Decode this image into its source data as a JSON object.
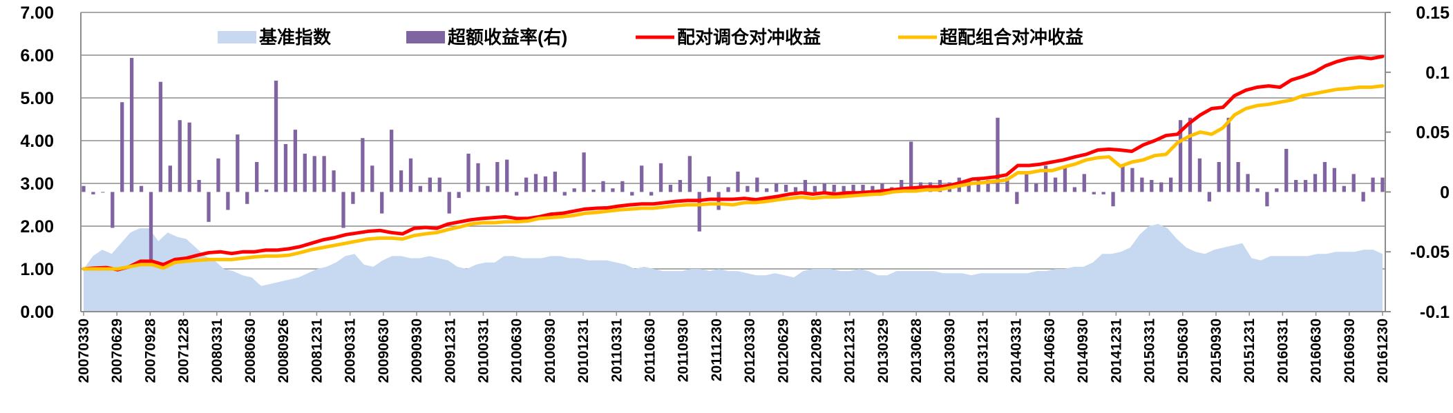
{
  "chart_data": {
    "type": "combo",
    "legend": {
      "placement": "top",
      "items": [
        {
          "label": "基准指数",
          "kind": "area",
          "color": "#c6d9f1"
        },
        {
          "label": "超额收益率(右)",
          "kind": "bar",
          "color": "#8064a2"
        },
        {
          "label": "配对调仓对冲收益",
          "kind": "line",
          "color": "#ff0000"
        },
        {
          "label": "超配组合对冲收益",
          "kind": "line",
          "color": "#ffc000"
        }
      ]
    },
    "left_axis": {
      "ylim": [
        0,
        7
      ],
      "ticks": [
        "0.00",
        "1.00",
        "2.00",
        "3.00",
        "4.00",
        "5.00",
        "6.00",
        "7.00"
      ],
      "tick_values": [
        0,
        1,
        2,
        3,
        4,
        5,
        6,
        7
      ]
    },
    "right_axis": {
      "ylim": [
        -0.1,
        0.15
      ],
      "ticks": [
        "-0.1",
        "-0.05",
        "0",
        "0.05",
        "0.1",
        "0.15"
      ],
      "tick_values": [
        -0.1,
        -0.05,
        0,
        0.05,
        0.1,
        0.15
      ]
    },
    "grid": "horizontal",
    "x_tick_labels": [
      "20070330",
      "20070629",
      "20070928",
      "20071228",
      "20080331",
      "20080630",
      "20080926",
      "20081231",
      "20090331",
      "20090630",
      "20090930",
      "20091231",
      "20100331",
      "20100630",
      "20100930",
      "20101231",
      "20110331",
      "20110630",
      "20110930",
      "20111230",
      "20120330",
      "20120629",
      "20120928",
      "20121231",
      "20130329",
      "20130628",
      "20130930",
      "20131231",
      "20140331",
      "20140630",
      "20140930",
      "20141231",
      "20150331",
      "20150630",
      "20150930",
      "20151231",
      "20160331",
      "20160630",
      "20160930",
      "20161230"
    ],
    "series": [
      {
        "name": "基准指数",
        "type": "area",
        "axis": "left",
        "color": "#c6d9f1",
        "values": [
          1.0,
          1.3,
          1.45,
          1.35,
          1.6,
          1.85,
          1.95,
          1.95,
          1.65,
          1.85,
          1.75,
          1.7,
          1.5,
          1.3,
          1.2,
          1.0,
          0.95,
          0.85,
          0.8,
          0.6,
          0.65,
          0.7,
          0.75,
          0.8,
          0.9,
          1.0,
          1.05,
          1.15,
          1.3,
          1.35,
          1.1,
          1.05,
          1.2,
          1.3,
          1.3,
          1.25,
          1.25,
          1.3,
          1.25,
          1.2,
          1.05,
          1.0,
          1.1,
          1.15,
          1.15,
          1.3,
          1.3,
          1.25,
          1.25,
          1.25,
          1.3,
          1.3,
          1.25,
          1.25,
          1.2,
          1.2,
          1.2,
          1.15,
          1.1,
          1.0,
          1.05,
          1.0,
          0.95,
          0.95,
          0.95,
          1.0,
          1.0,
          0.95,
          1.0,
          0.95,
          0.95,
          0.9,
          0.85,
          0.85,
          0.9,
          0.85,
          0.8,
          0.95,
          1.0,
          1.0,
          1.0,
          0.95,
          0.95,
          1.0,
          0.95,
          0.85,
          0.85,
          0.95,
          0.95,
          0.95,
          0.95,
          0.95,
          0.9,
          0.9,
          0.9,
          0.85,
          0.9,
          0.9,
          0.9,
          0.9,
          0.9,
          0.9,
          0.95,
          0.95,
          1.0,
          1.0,
          1.05,
          1.05,
          1.15,
          1.35,
          1.35,
          1.4,
          1.5,
          1.8,
          2.0,
          2.05,
          1.95,
          1.7,
          1.5,
          1.4,
          1.35,
          1.45,
          1.5,
          1.55,
          1.6,
          1.25,
          1.2,
          1.3,
          1.3,
          1.3,
          1.3,
          1.3,
          1.35,
          1.35,
          1.4,
          1.4,
          1.4,
          1.45,
          1.45,
          1.35
        ]
      },
      {
        "name": "超额收益率(右)",
        "type": "bar",
        "axis": "right",
        "color": "#8064a2",
        "values": [
          0.005,
          -0.002,
          0.0,
          -0.03,
          0.075,
          0.112,
          0.005,
          -0.06,
          0.092,
          0.022,
          0.06,
          0.058,
          0.01,
          -0.025,
          0.028,
          -0.015,
          0.048,
          -0.01,
          0.025,
          0.002,
          0.093,
          0.04,
          0.052,
          0.032,
          0.03,
          0.03,
          0.018,
          -0.03,
          -0.01,
          0.045,
          0.022,
          -0.018,
          0.052,
          0.018,
          0.028,
          0.005,
          0.012,
          0.012,
          -0.018,
          -0.005,
          0.032,
          0.024,
          0.005,
          0.025,
          0.027,
          -0.003,
          0.012,
          0.015,
          0.013,
          0.017,
          -0.003,
          0.003,
          0.033,
          0.002,
          0.009,
          0.003,
          0.009,
          -0.003,
          0.022,
          -0.003,
          0.024,
          0.006,
          0.01,
          0.03,
          -0.033,
          0.013,
          -0.015,
          0.004,
          0.017,
          0.005,
          0.012,
          0.003,
          0.007,
          0.006,
          0.004,
          0.01,
          0.005,
          0.007,
          0.006,
          0.005,
          0.006,
          0.006,
          0.005,
          0.007,
          0.004,
          0.01,
          0.042,
          0.008,
          0.008,
          0.01,
          0.008,
          0.012,
          0.01,
          0.01,
          0.01,
          0.062,
          0.012,
          -0.01,
          0.015,
          0.007,
          0.022,
          0.012,
          0.022,
          0.004,
          0.015,
          -0.002,
          -0.002,
          -0.012,
          0.022,
          0.02,
          0.012,
          0.01,
          0.008,
          0.012,
          0.06,
          0.062,
          0.028,
          -0.008,
          0.025,
          0.062,
          0.025,
          0.015,
          0.003,
          -0.012,
          0.003,
          0.036,
          0.01,
          0.01,
          0.015,
          0.025,
          0.02,
          0.005,
          0.015,
          -0.008,
          0.012,
          0.012
        ]
      },
      {
        "name": "配对调仓对冲收益",
        "type": "line",
        "axis": "left",
        "color": "#ff0000",
        "values": [
          1.0,
          1.02,
          1.03,
          0.98,
          1.05,
          1.18,
          1.18,
          1.1,
          1.22,
          1.25,
          1.32,
          1.38,
          1.4,
          1.36,
          1.4,
          1.4,
          1.44,
          1.44,
          1.47,
          1.52,
          1.6,
          1.68,
          1.73,
          1.8,
          1.84,
          1.88,
          1.9,
          1.85,
          1.82,
          1.95,
          1.97,
          1.95,
          2.05,
          2.1,
          2.15,
          2.18,
          2.2,
          2.22,
          2.18,
          2.18,
          2.22,
          2.28,
          2.3,
          2.35,
          2.4,
          2.42,
          2.43,
          2.47,
          2.5,
          2.52,
          2.52,
          2.55,
          2.58,
          2.6,
          2.6,
          2.63,
          2.63,
          2.63,
          2.65,
          2.62,
          2.66,
          2.7,
          2.75,
          2.78,
          2.75,
          2.78,
          2.75,
          2.78,
          2.78,
          2.8,
          2.82,
          2.85,
          2.88,
          2.9,
          2.92,
          2.92,
          2.95,
          3.02,
          3.1,
          3.12,
          3.15,
          3.2,
          3.42,
          3.42,
          3.45,
          3.5,
          3.55,
          3.62,
          3.68,
          3.78,
          3.8,
          3.78,
          3.75,
          3.9,
          4.0,
          4.12,
          4.15,
          4.4,
          4.6,
          4.75,
          4.78,
          5.05,
          5.18,
          5.25,
          5.28,
          5.25,
          5.42,
          5.5,
          5.6,
          5.75,
          5.85,
          5.92,
          5.95,
          5.92,
          5.97
        ]
      },
      {
        "name": "超配组合对冲收益",
        "type": "line",
        "axis": "left",
        "color": "#ffc000",
        "values": [
          1.0,
          1.0,
          1.0,
          1.0,
          1.05,
          1.1,
          1.1,
          1.02,
          1.15,
          1.18,
          1.2,
          1.22,
          1.22,
          1.22,
          1.25,
          1.28,
          1.3,
          1.3,
          1.32,
          1.38,
          1.45,
          1.5,
          1.55,
          1.6,
          1.65,
          1.7,
          1.72,
          1.72,
          1.7,
          1.78,
          1.82,
          1.85,
          1.92,
          1.98,
          2.05,
          2.08,
          2.08,
          2.1,
          2.1,
          2.12,
          2.18,
          2.2,
          2.22,
          2.25,
          2.3,
          2.32,
          2.35,
          2.38,
          2.4,
          2.42,
          2.42,
          2.45,
          2.48,
          2.5,
          2.5,
          2.52,
          2.52,
          2.5,
          2.55,
          2.55,
          2.58,
          2.62,
          2.65,
          2.68,
          2.65,
          2.68,
          2.68,
          2.7,
          2.72,
          2.74,
          2.75,
          2.8,
          2.82,
          2.82,
          2.85,
          2.85,
          2.9,
          2.95,
          3.0,
          3.02,
          3.05,
          3.08,
          3.25,
          3.25,
          3.3,
          3.3,
          3.38,
          3.45,
          3.55,
          3.6,
          3.62,
          3.4,
          3.5,
          3.55,
          3.65,
          3.68,
          3.95,
          4.1,
          4.2,
          4.15,
          4.3,
          4.6,
          4.75,
          4.82,
          4.85,
          4.9,
          4.95,
          5.05,
          5.1,
          5.15,
          5.2,
          5.22,
          5.25,
          5.25,
          5.28
        ]
      }
    ]
  }
}
